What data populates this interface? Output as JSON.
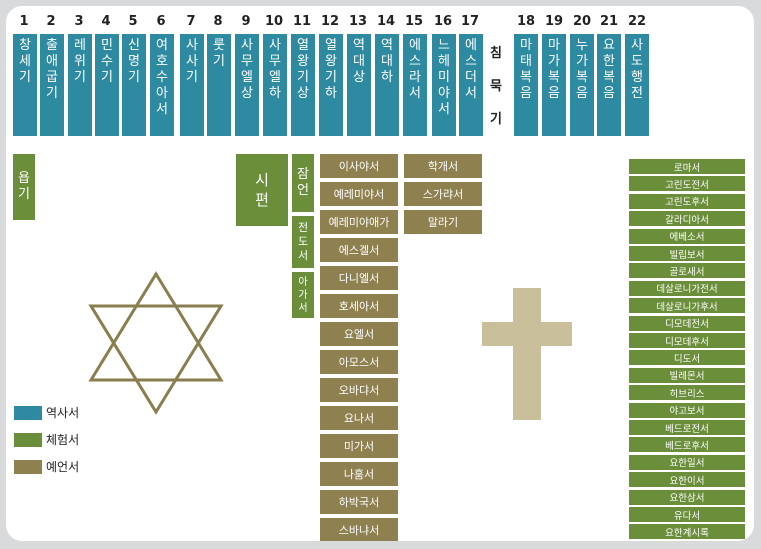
{
  "old_testament_numbers": [
    "1",
    "2",
    "3",
    "4",
    "5",
    "6",
    "7",
    "8",
    "9",
    "10",
    "11",
    "12",
    "13",
    "14",
    "15",
    "16",
    "17"
  ],
  "old_testament_books": [
    [
      "창",
      "세",
      "기"
    ],
    [
      "출",
      "애",
      "굽",
      "기"
    ],
    [
      "레",
      "위",
      "기"
    ],
    [
      "민",
      "수",
      "기"
    ],
    [
      "신",
      "명",
      "기"
    ],
    [
      "여",
      "호",
      "수",
      "아",
      "서"
    ],
    [
      "사",
      "사",
      "기"
    ],
    [
      "룻",
      "기"
    ],
    [
      "사",
      "무",
      "엘",
      "상"
    ],
    [
      "사",
      "무",
      "엘",
      "하"
    ],
    [
      "열",
      "왕",
      "기",
      "상"
    ],
    [
      "열",
      "왕",
      "기",
      "하"
    ],
    [
      "역",
      "대",
      "상"
    ],
    [
      "역",
      "대",
      "하"
    ],
    [
      "에",
      "스",
      "라",
      "서"
    ],
    [
      "느",
      "헤",
      "미",
      "야",
      "서"
    ],
    [
      "에",
      "스",
      "더",
      "서"
    ]
  ],
  "silent_period": [
    "침",
    "묵",
    "기"
  ],
  "new_testament_numbers": [
    "18",
    "19",
    "20",
    "21",
    "22"
  ],
  "new_testament_books": [
    [
      "마",
      "태",
      "복",
      "음"
    ],
    [
      "마",
      "가",
      "복",
      "음"
    ],
    [
      "누",
      "가",
      "복",
      "음"
    ],
    [
      "요",
      "한",
      "복",
      "음"
    ],
    [
      "사",
      "도",
      "행",
      "전"
    ]
  ],
  "wisdom": {
    "job": [
      "욥",
      "기"
    ],
    "psalms": [
      "시",
      "편"
    ],
    "proverbs": [
      "잠",
      "언"
    ],
    "ecclesiastes": [
      "전",
      "도",
      "서"
    ],
    "song": [
      "아",
      "가",
      "서"
    ]
  },
  "prophets_col1": [
    "이사야서",
    "예레미야서",
    "예레미야애가",
    "에스겔서",
    "다니엘서",
    "호세아서",
    "요엘서",
    "아모스서",
    "오바댜서",
    "요나서",
    "미가서",
    "나훔서",
    "하박국서",
    "스바냐서"
  ],
  "prophets_col2": [
    "학개서",
    "스가랴서",
    "말라기"
  ],
  "epistles": [
    "로마서",
    "고린도전서",
    "고린도후서",
    "갈라디아서",
    "에베소서",
    "빌립보서",
    "골로새서",
    "데살로니가전서",
    "데살로니가후서",
    "디모데전서",
    "디모데후서",
    "디도서",
    "빌레몬서",
    "히브리스",
    "야고보서",
    "베드로전서",
    "베드로후서",
    "요한일서",
    "요한이서",
    "요한삼서",
    "유다서",
    "요한계시록"
  ],
  "legend": [
    {
      "label": "역사서",
      "color": "#2e8aa0"
    },
    {
      "label": "체험서",
      "color": "#6b8e3a"
    },
    {
      "label": "예언서",
      "color": "#8f8050"
    }
  ],
  "colors": {
    "history": "#2e8aa0",
    "experience": "#6b8e3a",
    "prophecy": "#8f8050",
    "cross": "#c9bf9a",
    "star": "#8a7d4e"
  }
}
